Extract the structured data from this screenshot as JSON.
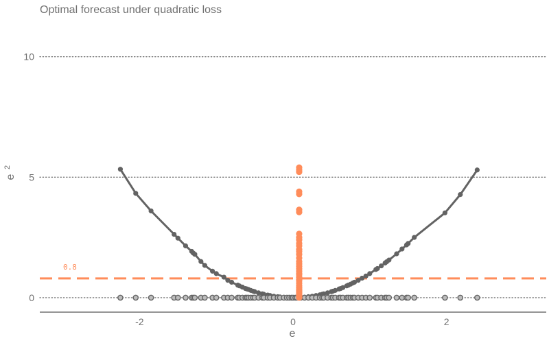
{
  "chart_data": {
    "type": "scatter",
    "title": "Optimal forecast under quadratic loss",
    "xlabel": "e",
    "ylabel": "e",
    "ylabel_superscript": "2",
    "xlim": [
      -3.3,
      3.3
    ],
    "ylim": [
      -0.6,
      11.5
    ],
    "x_ticks": [
      -2,
      0,
      2
    ],
    "x_tick_labels": [
      "-2",
      "0",
      "2"
    ],
    "y_ticks": [
      0,
      5,
      10
    ],
    "y_tick_labels": [
      "0",
      "5",
      "10"
    ],
    "grid": "horizontal dotted",
    "hline": {
      "y": 0.8,
      "label": "0.8"
    },
    "forecast_x": 0.08,
    "series": [
      {
        "role": "errors",
        "x": [
          -2.25,
          -2.05,
          -1.85,
          -1.55,
          -1.5,
          -1.4,
          -1.32,
          -1.3,
          -1.28,
          -1.2,
          -1.15,
          -1.05,
          -1.0,
          -0.9,
          -0.85,
          -0.8,
          -0.72,
          -0.7,
          -0.66,
          -0.62,
          -0.6,
          -0.58,
          -0.55,
          -0.52,
          -0.5,
          -0.45,
          -0.4,
          -0.38,
          -0.33,
          -0.3,
          -0.25,
          -0.2,
          -0.17,
          -0.12,
          -0.08,
          -0.05,
          -0.02,
          0.0,
          0.03,
          0.05,
          0.1,
          0.15,
          0.2,
          0.25,
          0.3,
          0.35,
          0.38,
          0.4,
          0.45,
          0.5,
          0.52,
          0.55,
          0.6,
          0.62,
          0.65,
          0.7,
          0.72,
          0.75,
          0.78,
          0.8,
          0.85,
          0.9,
          0.95,
          1.0,
          1.08,
          1.1,
          1.15,
          1.2,
          1.22,
          1.25,
          1.35,
          1.42,
          1.48,
          1.5,
          1.58,
          1.98,
          2.18,
          2.4
        ],
        "y": [
          5.33,
          4.33,
          3.6,
          2.63,
          2.47,
          2.15,
          1.92,
          1.85,
          1.8,
          1.5,
          1.34,
          1.1,
          1.0,
          0.85,
          0.72,
          0.64,
          0.52,
          0.49,
          0.44,
          0.38,
          0.36,
          0.34,
          0.3,
          0.27,
          0.25,
          0.2,
          0.16,
          0.14,
          0.11,
          0.09,
          0.06,
          0.04,
          0.03,
          0.015,
          0.006,
          0.003,
          0.0,
          0.0,
          0.001,
          0.003,
          0.01,
          0.02,
          0.04,
          0.06,
          0.09,
          0.12,
          0.14,
          0.16,
          0.2,
          0.25,
          0.27,
          0.3,
          0.36,
          0.38,
          0.42,
          0.49,
          0.52,
          0.56,
          0.61,
          0.64,
          0.72,
          0.81,
          0.9,
          1.0,
          1.17,
          1.21,
          1.32,
          1.44,
          1.49,
          1.56,
          1.82,
          2.02,
          2.19,
          2.25,
          2.5,
          3.52,
          4.28,
          5.3
        ]
      },
      {
        "role": "forecast",
        "y": [
          5.4,
          5.3,
          5.22,
          4.4,
          4.3,
          3.65,
          3.55,
          2.65,
          2.5,
          2.4,
          2.25,
          2.15,
          2.0,
          1.92,
          1.8,
          1.65,
          1.5,
          1.4,
          1.3,
          1.2,
          1.1,
          1.0,
          0.95,
          0.85,
          0.75,
          0.7,
          0.6,
          0.5,
          0.42,
          0.35,
          0.3,
          0.25,
          0.2,
          0.15,
          0.1,
          0.05,
          0.02,
          0.0
        ]
      }
    ],
    "colors": {
      "curve": "#636363",
      "forecast": "#ff8c5a",
      "rug_fill": "#bdbdbd",
      "rug_stroke": "#636363",
      "grid": "#777777",
      "axis": "#555555"
    }
  }
}
